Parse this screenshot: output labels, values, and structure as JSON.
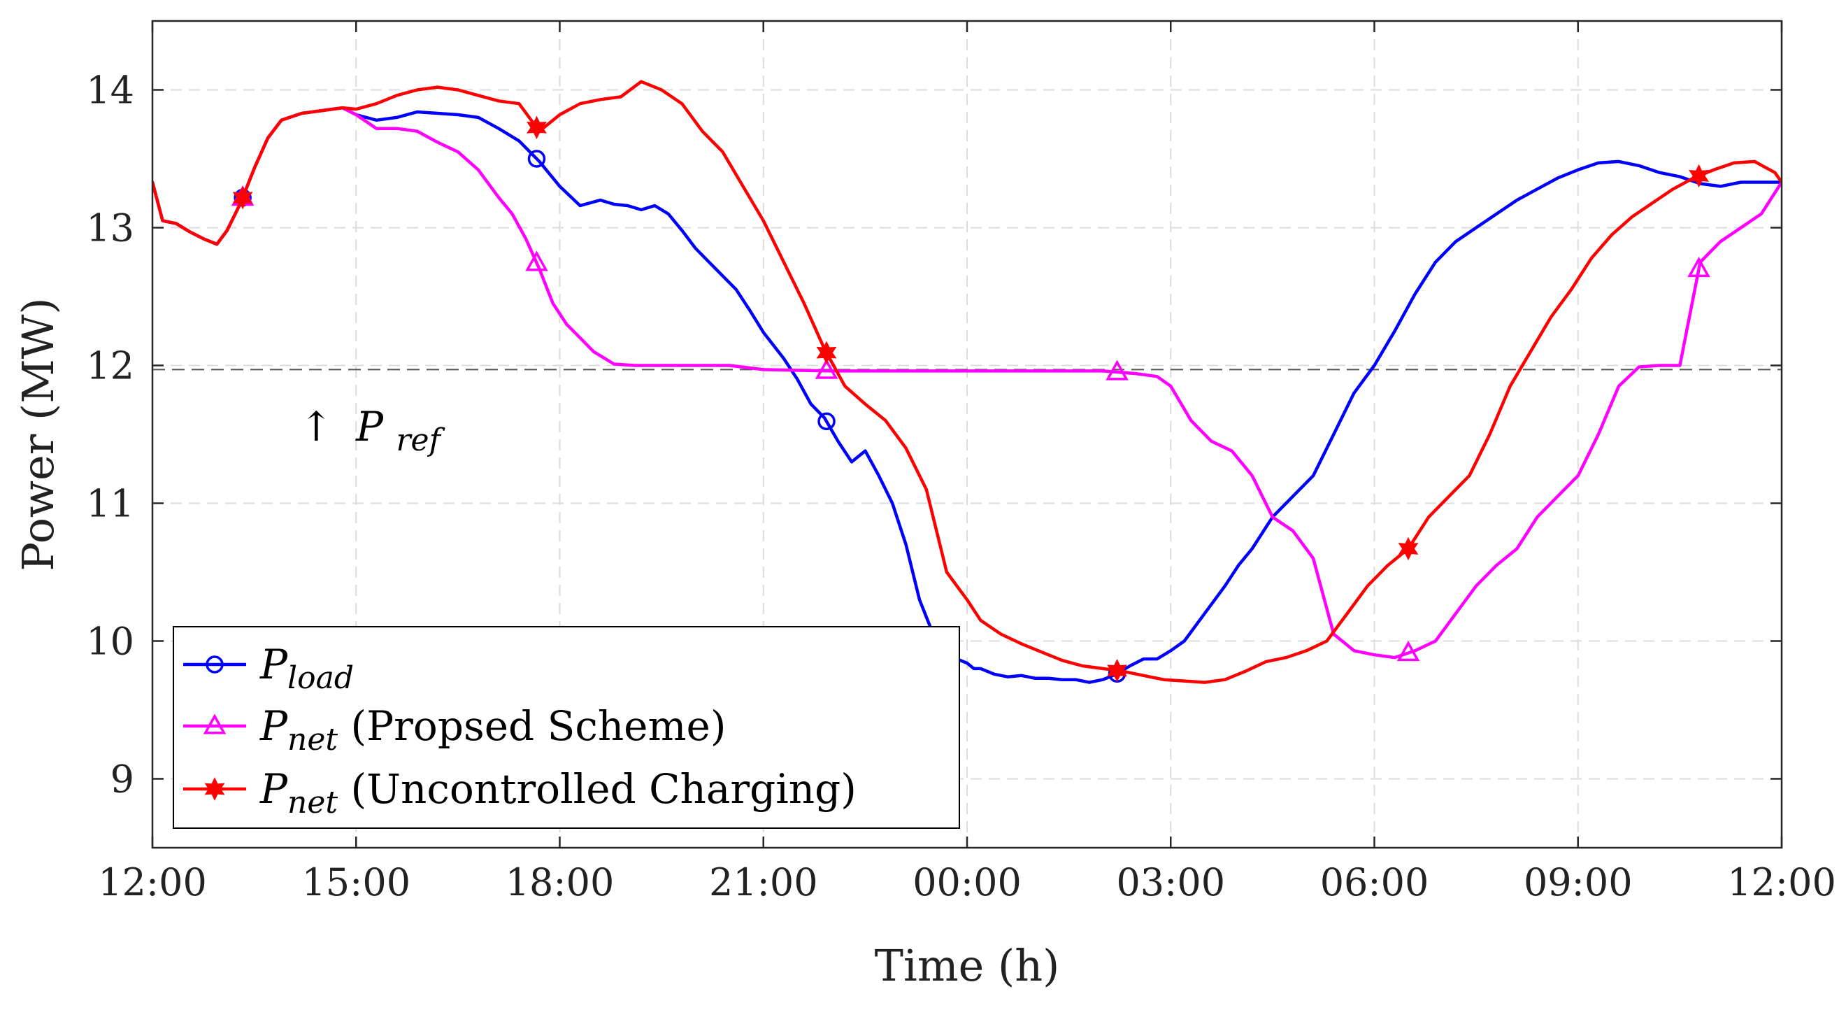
{
  "chart_data": {
    "type": "line",
    "title": "",
    "xlabel": "Time (h)",
    "ylabel": "Power (MW)",
    "x_unit": "hours since 12:00",
    "xlim": [
      0,
      24
    ],
    "ylim": [
      8.5,
      14.5
    ],
    "x_ticks": [
      0,
      3,
      6,
      9,
      12,
      15,
      18,
      21,
      24
    ],
    "x_tick_labels": [
      "12:00",
      "15:00",
      "18:00",
      "21:00",
      "00:00",
      "03:00",
      "06:00",
      "09:00",
      "12:00"
    ],
    "y_ticks": [
      9,
      10,
      11,
      12,
      13,
      14
    ],
    "y_tick_labels": [
      "9",
      "10",
      "11",
      "12",
      "13",
      "14"
    ],
    "grid": true,
    "legend_position": "bottom-left",
    "reference_line": {
      "y": 11.97,
      "annotation": {
        "arrow": "↑",
        "symbol": "P",
        "subscript": "ref"
      }
    },
    "series": [
      {
        "name": "P_load",
        "symbol": "P",
        "subscript": "load",
        "suffix": "",
        "color": "#0000ff",
        "marker": "circle",
        "x": [
          0,
          0.15,
          0.35,
          0.55,
          0.75,
          0.95,
          1.1,
          1.3,
          1.5,
          1.7,
          1.9,
          2.2,
          2.5,
          2.8,
          3.0,
          3.3,
          3.6,
          3.9,
          4.2,
          4.5,
          4.8,
          5.1,
          5.4,
          5.7,
          6.0,
          6.3,
          6.6,
          6.8,
          7.0,
          7.2,
          7.4,
          7.6,
          7.8,
          8.0,
          8.2,
          8.4,
          8.6,
          8.8,
          9.0,
          9.3,
          9.5,
          9.7,
          9.9,
          10.1,
          10.3,
          10.5,
          10.7,
          10.9,
          11.1,
          11.3,
          11.5,
          11.7,
          11.9,
          12.0,
          12.1,
          12.2,
          12.4,
          12.6,
          12.8,
          13.0,
          13.2,
          13.4,
          13.6,
          13.8,
          14.0,
          14.2,
          14.4,
          14.6,
          14.8,
          15.0,
          15.2,
          15.5,
          15.8,
          16.0,
          16.2,
          16.5,
          16.8,
          17.1,
          17.4,
          17.7,
          18.0,
          18.3,
          18.6,
          18.9,
          19.2,
          19.5,
          19.8,
          20.1,
          20.4,
          20.7,
          21.0,
          21.3,
          21.6,
          21.9,
          22.2,
          22.5,
          22.8,
          23.1,
          23.4,
          23.7,
          24.0
        ],
        "y": [
          13.33,
          13.05,
          13.03,
          12.97,
          12.92,
          12.88,
          12.98,
          13.18,
          13.43,
          13.65,
          13.78,
          13.83,
          13.85,
          13.87,
          13.82,
          13.78,
          13.8,
          13.84,
          13.83,
          13.82,
          13.8,
          13.72,
          13.63,
          13.48,
          13.3,
          13.16,
          13.2,
          13.17,
          13.16,
          13.13,
          13.16,
          13.1,
          12.98,
          12.85,
          12.75,
          12.65,
          12.55,
          12.4,
          12.24,
          12.05,
          11.9,
          11.72,
          11.62,
          11.45,
          11.3,
          11.38,
          11.2,
          11.0,
          10.7,
          10.3,
          10.05,
          9.9,
          9.86,
          9.84,
          9.8,
          9.8,
          9.76,
          9.74,
          9.75,
          9.73,
          9.73,
          9.72,
          9.72,
          9.7,
          9.72,
          9.76,
          9.82,
          9.87,
          9.87,
          9.93,
          10.0,
          10.2,
          10.4,
          10.55,
          10.67,
          10.9,
          11.05,
          11.2,
          11.5,
          11.8,
          12.0,
          12.25,
          12.52,
          12.75,
          12.9,
          13.0,
          13.1,
          13.2,
          13.28,
          13.36,
          13.42,
          13.47,
          13.48,
          13.45,
          13.4,
          13.37,
          13.32,
          13.3,
          13.33,
          13.33,
          13.33
        ],
        "marker_x": [
          1.33,
          5.66,
          9.93,
          14.21
        ]
      },
      {
        "name": "P_net (Propsed Scheme)",
        "symbol": "P",
        "subscript": "net",
        "suffix": " (Propsed Scheme)",
        "color": "#ff00ff",
        "marker": "triangle",
        "x": [
          0,
          0.15,
          0.35,
          0.55,
          0.75,
          0.95,
          1.1,
          1.3,
          1.5,
          1.7,
          1.9,
          2.2,
          2.5,
          2.8,
          3.0,
          3.3,
          3.6,
          3.9,
          4.2,
          4.5,
          4.8,
          5.1,
          5.3,
          5.5,
          5.7,
          5.9,
          6.1,
          6.3,
          6.5,
          6.8,
          7.1,
          7.4,
          7.7,
          8.0,
          8.5,
          9.0,
          10.0,
          11.0,
          12.0,
          13.0,
          14.0,
          14.5,
          14.8,
          15.0,
          15.3,
          15.6,
          15.9,
          16.2,
          16.5,
          16.8,
          17.1,
          17.4,
          17.7,
          18.0,
          18.3,
          18.6,
          18.9,
          19.2,
          19.5,
          19.8,
          20.1,
          20.4,
          20.7,
          21.0,
          21.3,
          21.6,
          21.9,
          22.2,
          22.5,
          22.8,
          23.1,
          23.4,
          23.7,
          24.0
        ],
        "y": [
          13.33,
          13.05,
          13.03,
          12.97,
          12.92,
          12.88,
          12.98,
          13.18,
          13.43,
          13.65,
          13.78,
          13.83,
          13.85,
          13.87,
          13.82,
          13.72,
          13.72,
          13.7,
          13.62,
          13.55,
          13.42,
          13.22,
          13.1,
          12.92,
          12.7,
          12.45,
          12.3,
          12.2,
          12.1,
          12.01,
          12.0,
          12.0,
          12.0,
          12.0,
          12.0,
          11.97,
          11.96,
          11.96,
          11.96,
          11.96,
          11.96,
          11.94,
          11.92,
          11.85,
          11.6,
          11.45,
          11.38,
          11.2,
          10.9,
          10.8,
          10.6,
          10.05,
          9.93,
          9.9,
          9.88,
          9.93,
          10.0,
          10.2,
          10.4,
          10.55,
          10.67,
          10.9,
          11.05,
          11.2,
          11.5,
          11.85,
          11.99,
          12.0,
          12.0,
          12.75,
          12.9,
          13.0,
          13.1,
          13.33
        ],
        "marker_x": [
          1.33,
          5.66,
          9.93,
          14.21,
          18.5,
          22.78
        ]
      },
      {
        "name": "P_net (Uncontrolled Charging)",
        "symbol": "P",
        "subscript": "net",
        "suffix": " (Uncontrolled Charging)",
        "color": "#ff0000",
        "marker": "star",
        "x": [
          0,
          0.15,
          0.35,
          0.55,
          0.75,
          0.95,
          1.1,
          1.3,
          1.5,
          1.7,
          1.9,
          2.2,
          2.5,
          2.8,
          3.0,
          3.3,
          3.6,
          3.9,
          4.2,
          4.5,
          4.8,
          5.1,
          5.4,
          5.7,
          6.0,
          6.3,
          6.6,
          6.9,
          7.2,
          7.5,
          7.8,
          8.1,
          8.4,
          8.7,
          9.0,
          9.3,
          9.6,
          9.9,
          10.2,
          10.5,
          10.8,
          11.1,
          11.4,
          11.7,
          12.0,
          12.2,
          12.5,
          12.8,
          13.1,
          13.4,
          13.7,
          14.0,
          14.3,
          14.6,
          14.9,
          15.2,
          15.5,
          15.8,
          16.1,
          16.4,
          16.7,
          17.0,
          17.3,
          17.6,
          17.9,
          18.2,
          18.5,
          18.8,
          19.1,
          19.4,
          19.7,
          20.0,
          20.3,
          20.6,
          20.9,
          21.2,
          21.5,
          21.8,
          22.1,
          22.4,
          22.7,
          23.0,
          23.3,
          23.6,
          23.9,
          24.0
        ],
        "y": [
          13.33,
          13.05,
          13.03,
          12.97,
          12.92,
          12.88,
          12.98,
          13.18,
          13.43,
          13.65,
          13.78,
          13.83,
          13.85,
          13.87,
          13.86,
          13.9,
          13.96,
          14.0,
          14.02,
          14.0,
          13.96,
          13.92,
          13.9,
          13.7,
          13.82,
          13.9,
          13.93,
          13.95,
          14.06,
          14.0,
          13.9,
          13.7,
          13.55,
          13.3,
          13.05,
          12.75,
          12.45,
          12.12,
          11.85,
          11.72,
          11.6,
          11.4,
          11.1,
          10.5,
          10.3,
          10.15,
          10.05,
          9.98,
          9.92,
          9.86,
          9.82,
          9.8,
          9.78,
          9.75,
          9.72,
          9.71,
          9.7,
          9.72,
          9.78,
          9.85,
          9.88,
          9.93,
          10.0,
          10.2,
          10.4,
          10.55,
          10.67,
          10.9,
          11.05,
          11.2,
          11.5,
          11.85,
          12.1,
          12.35,
          12.55,
          12.78,
          12.95,
          13.08,
          13.18,
          13.28,
          13.36,
          13.42,
          13.47,
          13.48,
          13.4,
          13.33
        ],
        "marker_x": [
          1.33,
          5.66,
          9.93,
          14.21,
          18.5,
          22.78
        ]
      }
    ]
  }
}
